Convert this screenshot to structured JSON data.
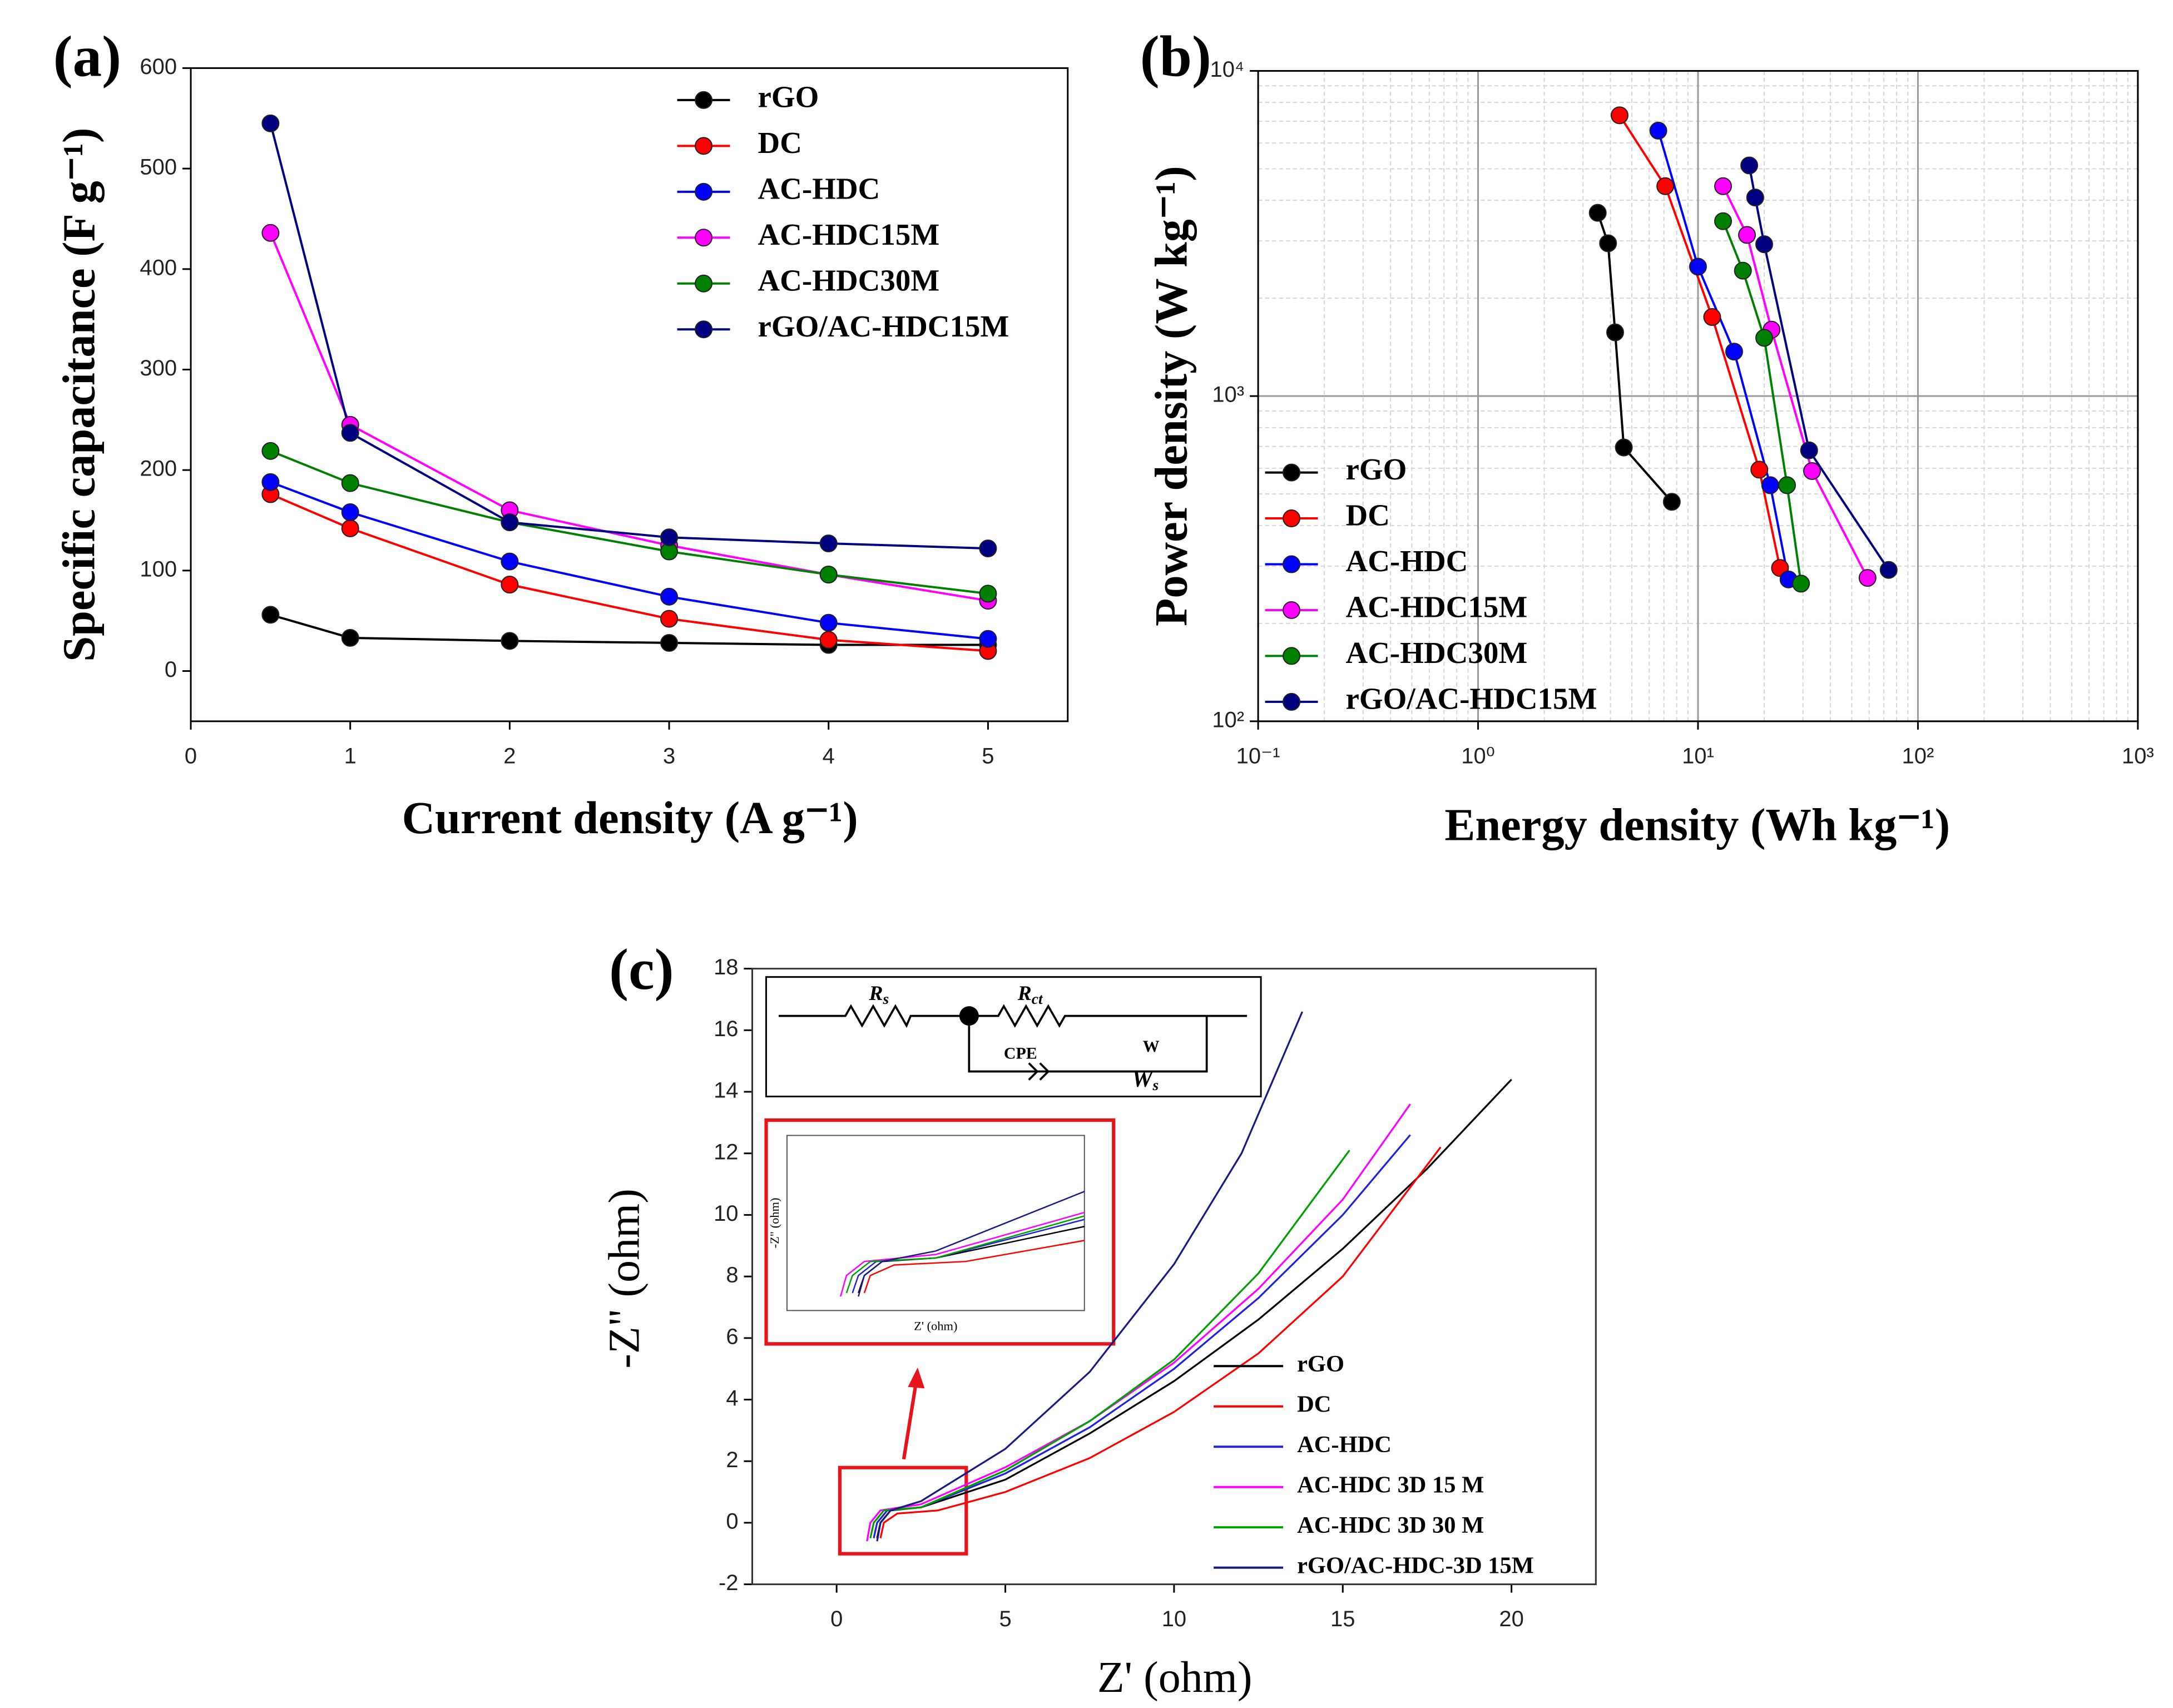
{
  "chart_data": [
    {
      "type": "line",
      "panel": "(a)",
      "xlabel": "Current density (A g⁻¹)",
      "ylabel": "Specific capacitance (F g⁻¹)",
      "x": [
        0.5,
        1,
        2,
        3,
        4,
        5
      ],
      "xlim": [
        0,
        5.5
      ],
      "xticks": [
        0,
        1,
        2,
        3,
        4,
        5
      ],
      "ylim": [
        -50,
        600
      ],
      "yticks": [
        0,
        100,
        200,
        300,
        400,
        500,
        600
      ],
      "markers": true,
      "legend": "upper right",
      "series": [
        {
          "name": "rGO",
          "color": "#000000",
          "values": [
            56,
            33,
            30,
            28,
            26,
            26
          ]
        },
        {
          "name": "DC",
          "color": "#ff0000",
          "values": [
            176,
            142,
            86,
            52,
            31,
            20
          ]
        },
        {
          "name": "AC-HDC",
          "color": "#0000ff",
          "values": [
            188,
            158,
            109,
            74,
            48,
            32
          ]
        },
        {
          "name": "AC-HDC15M",
          "color": "#ff00ff",
          "values": [
            436,
            245,
            160,
            125,
            96,
            70
          ]
        },
        {
          "name": "AC-HDC30M",
          "color": "#008000",
          "values": [
            219,
            187,
            148,
            119,
            96,
            77
          ]
        },
        {
          "name": "rGO/AC-HDC15M",
          "color": "#000080",
          "values": [
            545,
            237,
            148,
            133,
            127,
            122
          ]
        }
      ]
    },
    {
      "type": "line",
      "panel": "(b)",
      "xlabel": "Energy density (Wh kg⁻¹)",
      "ylabel": "Power density (W kg⁻¹)",
      "xlog": true,
      "ylog": true,
      "grid": true,
      "minor_grid": true,
      "markers": true,
      "legend": "lower left",
      "xlim": [
        0.1,
        1000
      ],
      "xticks": [
        {
          "value": 0.1,
          "label": "10⁻¹"
        },
        {
          "value": 1,
          "label": "10⁰"
        },
        {
          "value": 10,
          "label": "10¹"
        },
        {
          "value": 100,
          "label": "10²"
        },
        {
          "value": 1000,
          "label": "10³"
        }
      ],
      "ylim": [
        100,
        10000
      ],
      "yticks": [
        {
          "value": 100,
          "label": "10²"
        },
        {
          "value": 1000,
          "label": "10³"
        },
        {
          "value": 10000,
          "label": "10⁴"
        }
      ],
      "series": [
        {
          "name": "rGO",
          "color": "#000000",
          "x": [
            3.5,
            3.9,
            4.2,
            4.6,
            7.6
          ],
          "values": [
            3660,
            2950,
            1570,
            695,
            473
          ]
        },
        {
          "name": "DC",
          "color": "#ff0000",
          "x": [
            4.4,
            7.1,
            11.6,
            19,
            23.6
          ],
          "values": [
            7300,
            4420,
            1750,
            594,
            296
          ]
        },
        {
          "name": "AC-HDC",
          "color": "#0000ff",
          "x": [
            6.6,
            10,
            14.6,
            21.3,
            25.8
          ],
          "values": [
            6550,
            2500,
            1370,
            532,
            273
          ]
        },
        {
          "name": "AC-HDC15M",
          "color": "#ff00ff",
          "x": [
            13,
            16.7,
            21.6,
            33,
            59
          ],
          "values": [
            4420,
            3130,
            1600,
            588,
            276
          ]
        },
        {
          "name": "AC-HDC30M",
          "color": "#008000",
          "x": [
            13,
            16,
            20,
            25.4,
            29.4
          ],
          "values": [
            3450,
            2430,
            1510,
            532,
            265
          ]
        },
        {
          "name": "rGO/AC-HDC15M",
          "color": "#000080",
          "x": [
            17.1,
            18.2,
            20,
            32,
            73.6
          ],
          "values": [
            5120,
            4080,
            2930,
            681,
            292
          ]
        }
      ]
    },
    {
      "type": "line",
      "panel": "(c)",
      "xlabel": "Z' (ohm)",
      "ylabel": "-Z\" (ohm)",
      "legend": "lower right",
      "xlim": [
        -2.5,
        22.5
      ],
      "xticks": [
        0,
        5,
        10,
        15,
        20
      ],
      "ylim": [
        -2,
        18
      ],
      "yticks": [
        -2,
        0,
        2,
        4,
        6,
        8,
        10,
        12,
        14,
        16,
        18
      ],
      "circuit": {
        "rs": {
          "main": "R",
          "sub": "s"
        },
        "rct": {
          "main": "R",
          "sub": "ct"
        },
        "cpe": "CPE",
        "w": "W",
        "ws": {
          "main": "W",
          "sub": "s"
        }
      },
      "inset": {
        "xlim": [
          0,
          5
        ],
        "ylim": [
          -1,
          4
        ],
        "xlabel": "Z' (ohm)",
        "ylabel": "-Z\" (ohm)"
      },
      "series": [
        {
          "name": "rGO",
          "color": "#000000",
          "x": [
            1.2,
            1.3,
            1.6,
            2.5,
            5,
            7.5,
            10,
            12.5,
            15,
            17.5,
            20
          ],
          "values": [
            -0.5,
            0,
            0.4,
            0.5,
            1.4,
            2.9,
            4.6,
            6.6,
            8.9,
            11.5,
            14.4
          ]
        },
        {
          "name": "DC",
          "color": "#ff0000",
          "x": [
            1.3,
            1.4,
            1.8,
            3,
            5,
            7.5,
            10,
            12.5,
            15,
            17.9
          ],
          "values": [
            -0.5,
            0,
            0.3,
            0.4,
            1,
            2.1,
            3.6,
            5.5,
            8,
            12.2
          ]
        },
        {
          "name": "AC-HDC",
          "color": "#2222dd",
          "x": [
            1.1,
            1.2,
            1.5,
            2.5,
            5,
            7.5,
            10,
            12.5,
            15,
            17
          ],
          "values": [
            -0.5,
            0,
            0.4,
            0.5,
            1.6,
            3.1,
            5,
            7.3,
            10,
            12.6
          ]
        },
        {
          "name": "AC-HDC 3D 15 M",
          "color": "#ff00ff",
          "x": [
            0.9,
            1,
            1.3,
            2.5,
            5,
            7.5,
            10,
            12.5,
            15,
            17
          ],
          "values": [
            -0.6,
            0,
            0.4,
            0.6,
            1.8,
            3.3,
            5.2,
            7.6,
            10.5,
            13.6
          ]
        },
        {
          "name": "AC-HDC 3D 30 M",
          "color": "#00a000",
          "x": [
            1,
            1.1,
            1.4,
            2.5,
            5,
            7.5,
            10,
            12.5,
            15.2
          ],
          "values": [
            -0.5,
            0,
            0.4,
            0.5,
            1.7,
            3.3,
            5.3,
            8.1,
            12.1
          ]
        },
        {
          "name": "rGO/AC-HDC-3D 15M",
          "color": "#1a1a80",
          "x": [
            1.2,
            1.3,
            1.6,
            2.5,
            5,
            7.5,
            10,
            12,
            13.8
          ],
          "values": [
            -0.6,
            0,
            0.4,
            0.7,
            2.4,
            4.9,
            8.4,
            12,
            16.6
          ]
        }
      ]
    }
  ]
}
